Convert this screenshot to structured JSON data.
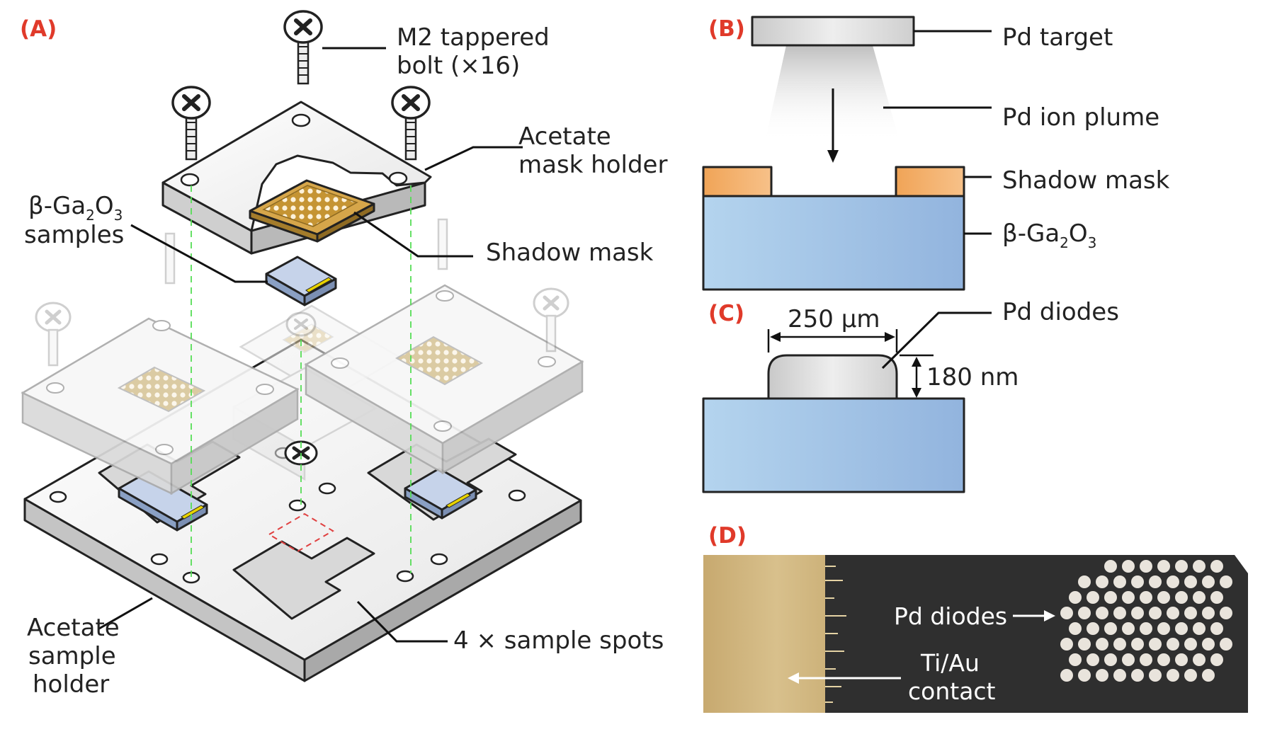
{
  "panels": {
    "a": "(A)",
    "b": "(B)",
    "c": "(C)",
    "d": "(D)"
  },
  "panel_a": {
    "bolt_line1": "M2 tappered",
    "bolt_line2": "bolt (×16)",
    "mask_holder_line1": "Acetate",
    "mask_holder_line2": "mask holder",
    "samples_beta": "β-Ga",
    "samples_sub1": "2",
    "samples_o": "O",
    "samples_sub2": "3",
    "samples_line2": "samples",
    "shadow_mask": "Shadow mask",
    "sample_holder_line1": "Acetate",
    "sample_holder_line2": "sample",
    "sample_holder_line3": "holder",
    "sample_spots": "4 × sample spots"
  },
  "panel_b": {
    "target": "Pd target",
    "plume": "Pd ion plume",
    "mask": "Shadow mask",
    "substrate_beta": "β-Ga",
    "substrate_sub1": "2",
    "substrate_o": "O",
    "substrate_sub2": "3"
  },
  "panel_c": {
    "diodes": "Pd diodes",
    "width": "250 µm",
    "height": "180 nm"
  },
  "panel_d": {
    "diodes": "Pd diodes",
    "contact_line1": "Ti/Au",
    "contact_line2": "contact"
  },
  "colors": {
    "panel_label": "#e03a2a",
    "gallium_oxide": "#a9c8e6",
    "shadow_mask": "#e99a4c",
    "mask_gold": "#d6a64a",
    "target": "#cfcfcf",
    "micrograph_bg": "#2f2f2f",
    "contact_gold": "#cdb27a",
    "guide_dashes": "#55dd55",
    "sample_spot_dashes": "#e04040"
  }
}
